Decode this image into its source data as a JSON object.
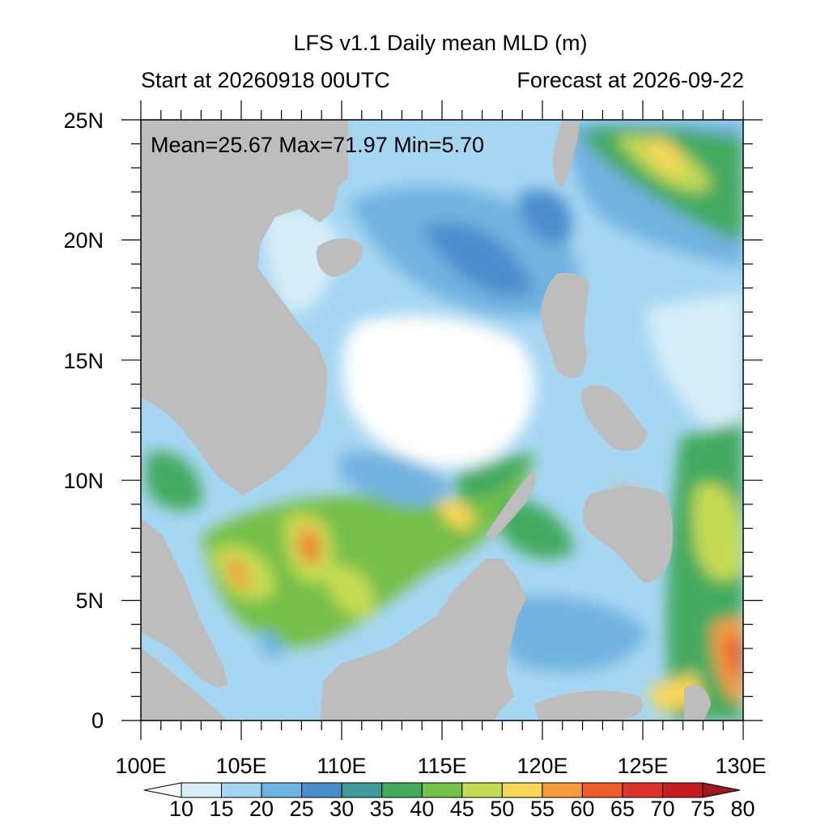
{
  "title": "LFS v1.1 Daily mean MLD (m)",
  "start_label": "Start at 20260918 00UTC",
  "forecast_label": "Forecast at 2026-09-22",
  "stats_label": "Mean=25.67  Max=71.97  Min=5.70",
  "lat_labels": [
    "25N",
    "20N",
    "15N",
    "10N",
    "5N",
    "0"
  ],
  "lon_labels": [
    "100E",
    "105E",
    "110E",
    "115E",
    "120E",
    "125E",
    "130E"
  ],
  "colorbar": {
    "labels": [
      "10",
      "15",
      "20",
      "25",
      "30",
      "35",
      "40",
      "45",
      "50",
      "55",
      "60",
      "65",
      "70",
      "75",
      "80"
    ],
    "colors": [
      "#ffffff",
      "#d6eef9",
      "#a6d6f2",
      "#72b2e0",
      "#4c8ecc",
      "#3f9a99",
      "#44aa60",
      "#74bf48",
      "#c6db55",
      "#f7d65a",
      "#f59a3d",
      "#ea5e2c",
      "#d9352a",
      "#c41c24",
      "#a01720"
    ]
  },
  "colors": {
    "land": "#bdbdbd",
    "ocean_low": "#ffffff"
  }
}
